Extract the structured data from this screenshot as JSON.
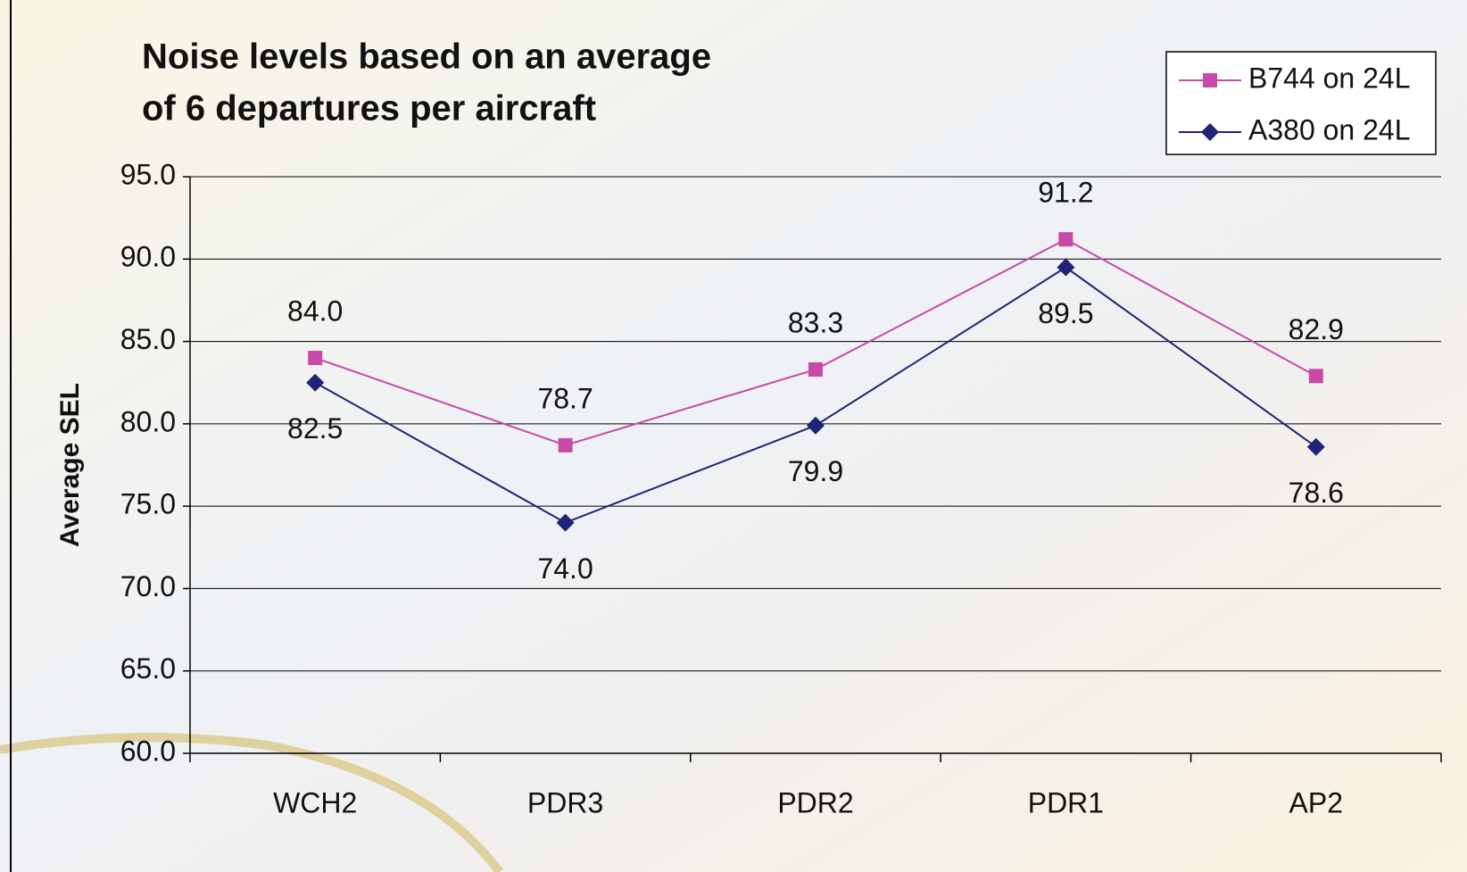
{
  "chart_data": {
    "type": "line",
    "title": [
      "Noise levels based on an average",
      "of 6 departures per aircraft"
    ],
    "y_label": "Average SEL",
    "categories": [
      "WCH2",
      "PDR3",
      "PDR2",
      "PDR1",
      "AP2"
    ],
    "series": [
      {
        "name": "B744 on 24L",
        "color": "#c84aa8",
        "marker": "square",
        "values": [
          84.0,
          78.7,
          83.3,
          91.2,
          82.9
        ],
        "value_labels": [
          "84.0",
          "78.7",
          "83.3",
          "91.2",
          "82.9"
        ]
      },
      {
        "name": "A380 on 24L",
        "color": "#1f2478",
        "marker": "diamond",
        "values": [
          82.5,
          74.0,
          79.9,
          89.5,
          78.6
        ],
        "value_labels": [
          "82.5",
          "74.0",
          "79.9",
          "89.5",
          "78.6"
        ]
      }
    ],
    "ylim": [
      60,
      95
    ],
    "yticks": [
      {
        "value": 60,
        "label": "60.0"
      },
      {
        "value": 65,
        "label": "65.0"
      },
      {
        "value": 70,
        "label": "70.0"
      },
      {
        "value": 75,
        "label": "75.0"
      },
      {
        "value": 80,
        "label": "80.0"
      },
      {
        "value": 85,
        "label": "85.0"
      },
      {
        "value": 90,
        "label": "90.0"
      },
      {
        "value": 95,
        "label": "95.0"
      }
    ],
    "grid": true,
    "legend": "top-right"
  }
}
